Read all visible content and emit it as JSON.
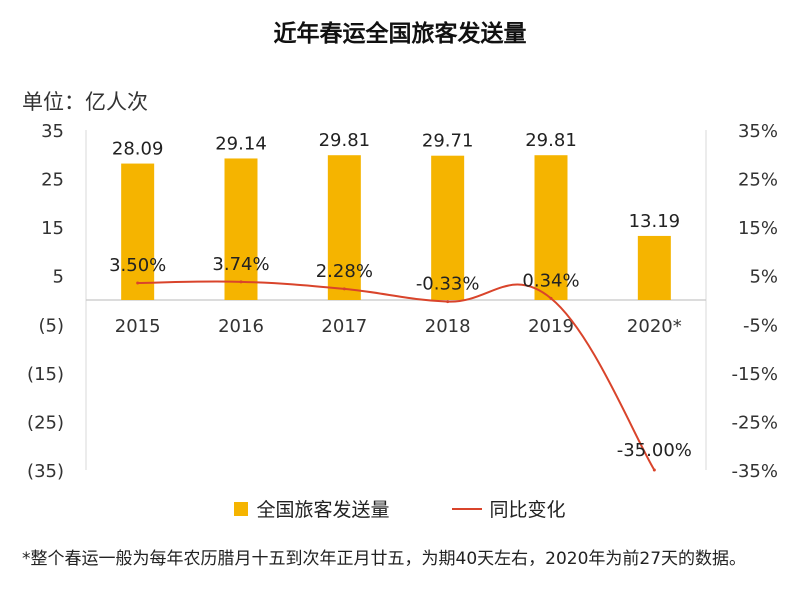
{
  "chart_data": {
    "type": "bar",
    "title": "近年春运全国旅客发送量",
    "unit_label": "单位：亿人次",
    "categories": [
      "2015",
      "2016",
      "2017",
      "2018",
      "2019",
      "2020*"
    ],
    "series": [
      {
        "name": "全国旅客发送量",
        "type": "bar",
        "axis": "left",
        "values": [
          28.09,
          29.14,
          29.81,
          29.71,
          29.81,
          13.19
        ],
        "labels": [
          "28.09",
          "29.14",
          "29.81",
          "29.71",
          "29.81",
          "13.19"
        ],
        "color": "#F5B400"
      },
      {
        "name": "同比变化",
        "type": "line",
        "axis": "right",
        "values": [
          3.5,
          3.74,
          2.28,
          -0.33,
          0.34,
          -35.0
        ],
        "labels": [
          "3.50%",
          "3.74%",
          "2.28%",
          "-0.33%",
          "0.34%",
          "-35.00%"
        ],
        "color": "#D9442B"
      }
    ],
    "y_left": {
      "ylim": [
        -35,
        35
      ],
      "ticks": [
        35,
        25,
        15,
        5,
        -5,
        -15,
        -25,
        -35
      ],
      "tick_labels": [
        "35",
        "25",
        "15",
        "5",
        "(5)",
        "(15)",
        "(25)",
        "(35)"
      ]
    },
    "y_right": {
      "ylim": [
        -35,
        35
      ],
      "ticks": [
        35,
        25,
        15,
        5,
        -5,
        -15,
        -25,
        -35
      ],
      "tick_labels": [
        "35%",
        "25%",
        "15%",
        "5%",
        "-5%",
        "-15%",
        "-25%",
        "-35%"
      ]
    },
    "grid": false,
    "legend_position": "bottom"
  },
  "footnote": "*整个春运一般为每年农历腊月十五到次年正月廿五，为期40天左右，2020年为前27天的数据。"
}
